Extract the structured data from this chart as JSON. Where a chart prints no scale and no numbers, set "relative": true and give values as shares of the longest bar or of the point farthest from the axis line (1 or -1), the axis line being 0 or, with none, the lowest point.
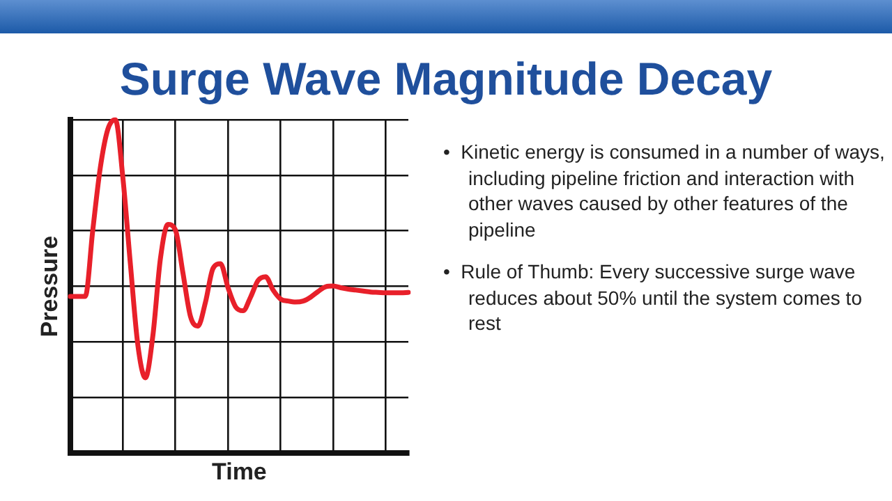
{
  "chart_data": {
    "type": "line",
    "title": "Surge Wave Magnitude Decay",
    "xlabel": "Time",
    "ylabel": "Pressure",
    "relative": true,
    "grid": true,
    "legend": false,
    "marker": "none",
    "line_style": "solid",
    "categories": [
      null,
      null,
      null,
      null,
      null,
      null,
      null,
      null,
      null,
      null,
      null,
      null,
      null,
      null,
      null,
      null,
      null,
      null,
      null,
      null,
      null,
      null,
      null,
      null,
      null,
      null,
      null,
      null,
      null,
      null,
      null,
      null,
      null,
      null,
      null,
      null,
      null,
      null,
      null,
      null,
      null,
      null,
      null,
      null,
      null,
      null
    ],
    "series": [
      {
        "color": "#e8202a",
        "values": [
          0.47,
          0.47,
          0.47,
          0.669,
          0.856,
          0.971,
          1,
          0.827,
          0.568,
          0.324,
          0.226,
          0.353,
          0.583,
          0.686,
          0.669,
          0.54,
          0.41,
          0.381,
          0.453,
          0.554,
          0.568,
          0.496,
          0.439,
          0.427,
          0.468,
          0.518,
          0.529,
          0.489,
          0.462,
          0.456,
          0.453,
          0.456,
          0.468,
          0.485,
          0.499,
          0.501,
          0.496,
          0.492,
          0.489,
          0.486,
          0.483,
          0.482,
          0.481,
          0.481,
          0.481,
          0.482
        ]
      }
    ],
    "annotations": [
      "•  Kinetic energy is consumed in a number of ways, including pipeline friction and interaction with other waves caused by other features of the pipeline",
      "•  Rule of Thumb: Every successive surge wave reduces about 50% until the system comes to rest"
    ]
  }
}
